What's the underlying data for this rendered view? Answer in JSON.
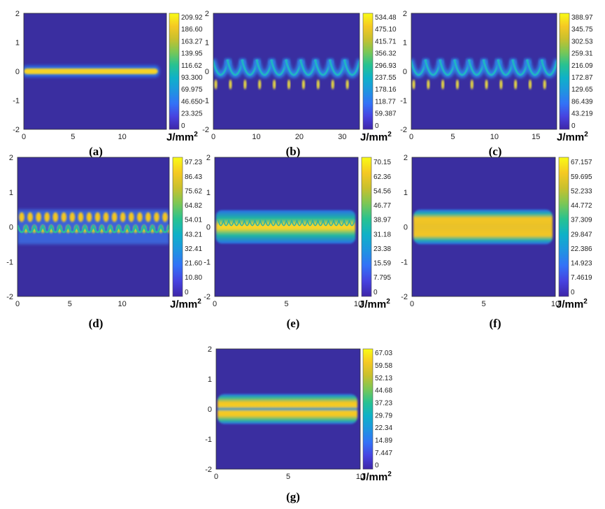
{
  "figure": {
    "colors": {
      "background": "#3a2ea0",
      "colormap": [
        "#3e26a8",
        "#4743e0",
        "#3372f7",
        "#1f95e0",
        "#0fb1c8",
        "#28c291",
        "#7bc755",
        "#c8c02e",
        "#f5c923",
        "#f9fb15"
      ]
    }
  },
  "chart_data": [
    {
      "id": "a",
      "type": "heatmap",
      "panel_label": "(a)",
      "pattern": "straight",
      "xlim": [
        0,
        14.5
      ],
      "ylim": [
        -2,
        2
      ],
      "xticks": [
        "0",
        "5",
        "10"
      ],
      "xtick_values": [
        0,
        5,
        10
      ],
      "yticks": [
        "2",
        "1",
        "0",
        "-1",
        "-2"
      ],
      "colorbar": {
        "unit_text": "J/mm",
        "unit_sup": "2",
        "ticks": [
          "209.92",
          "186.60",
          "163.27",
          "139.95",
          "116.62",
          "93.300",
          "69.975",
          "46.650",
          "23.325",
          "0"
        ]
      }
    },
    {
      "id": "b",
      "type": "heatmap",
      "panel_label": "(b)",
      "pattern": "arcs",
      "n_arcs": 10,
      "xlim": [
        0,
        34
      ],
      "ylim": [
        -2,
        2
      ],
      "xticks": [
        "0",
        "10",
        "20",
        "30"
      ],
      "xtick_values": [
        0,
        10,
        20,
        30
      ],
      "yticks": [
        "2",
        "1",
        "0",
        "-1",
        "-2"
      ],
      "colorbar": {
        "unit_text": "J/mm",
        "unit_sup": "2",
        "ticks": [
          "534.48",
          "475.10",
          "415.71",
          "356.32",
          "296.93",
          "237.55",
          "178.16",
          "118.77",
          "59.387",
          "0"
        ]
      }
    },
    {
      "id": "c",
      "type": "heatmap",
      "panel_label": "(c)",
      "pattern": "arcs",
      "n_arcs": 10,
      "xlim": [
        0,
        17.5
      ],
      "ylim": [
        -2,
        2
      ],
      "xticks": [
        "0",
        "5",
        "10",
        "15"
      ],
      "xtick_values": [
        0,
        5,
        10,
        15
      ],
      "yticks": [
        "2",
        "1",
        "0",
        "-1",
        "-2"
      ],
      "colorbar": {
        "unit_text": "J/mm",
        "unit_sup": "2",
        "ticks": [
          "388.97",
          "345.75",
          "302.53",
          "259.31",
          "216.09",
          "172.87",
          "129.65",
          "86.439",
          "43.219",
          "0"
        ]
      }
    },
    {
      "id": "d",
      "type": "heatmap",
      "panel_label": "(d)",
      "pattern": "braided",
      "n_arcs": 18,
      "xlim": [
        0,
        14.5
      ],
      "ylim": [
        -2,
        2
      ],
      "xticks": [
        "0",
        "5",
        "10"
      ],
      "xtick_values": [
        0,
        5,
        10
      ],
      "yticks": [
        "2",
        "1",
        "0",
        "-1",
        "-2"
      ],
      "colorbar": {
        "unit_text": "J/mm",
        "unit_sup": "2",
        "ticks": [
          "97.23",
          "86.43",
          "75.62",
          "64.82",
          "54.01",
          "43.21",
          "32.41",
          "21.60",
          "10.80",
          "0"
        ]
      }
    },
    {
      "id": "e",
      "type": "heatmap",
      "panel_label": "(e)",
      "pattern": "dense-band",
      "n_arcs": 26,
      "xlim": [
        0,
        10
      ],
      "ylim": [
        -2,
        2
      ],
      "xticks": [
        "0",
        "5",
        "10"
      ],
      "xtick_values": [
        0,
        5,
        10
      ],
      "yticks": [
        "2",
        "1",
        "0",
        "-1",
        "-2"
      ],
      "colorbar": {
        "unit_text": "J/mm",
        "unit_sup": "2",
        "ticks": [
          "70.15",
          "62.36",
          "54.56",
          "46.77",
          "38.97",
          "31.18",
          "23.38",
          "15.59",
          "7.795",
          "0"
        ]
      }
    },
    {
      "id": "f",
      "type": "heatmap",
      "panel_label": "(f)",
      "pattern": "band",
      "xlim": [
        0,
        10
      ],
      "ylim": [
        -2,
        2
      ],
      "xticks": [
        "0",
        "5",
        "10"
      ],
      "xtick_values": [
        0,
        5,
        10
      ],
      "yticks": [
        "2",
        "1",
        "0",
        "-1",
        "-2"
      ],
      "colorbar": {
        "unit_text": "J/mm",
        "unit_sup": "2",
        "ticks": [
          "67.157",
          "59.695",
          "52.233",
          "44.772",
          "37.309",
          "29.847",
          "22.386",
          "14.923",
          "7.4619",
          "0"
        ]
      }
    },
    {
      "id": "g",
      "type": "heatmap",
      "panel_label": "(g)",
      "pattern": "double-band",
      "xlim": [
        0,
        10
      ],
      "ylim": [
        -2,
        2
      ],
      "xticks": [
        "0",
        "5",
        "10"
      ],
      "xtick_values": [
        0,
        5,
        10
      ],
      "yticks": [
        "2",
        "1",
        "0",
        "-1",
        "-2"
      ],
      "colorbar": {
        "unit_text": "J/mm",
        "unit_sup": "2",
        "ticks": [
          "67.03",
          "59.58",
          "52.13",
          "44.68",
          "37.23",
          "29.79",
          "22.34",
          "14.89",
          "7.447",
          "0"
        ]
      }
    }
  ]
}
